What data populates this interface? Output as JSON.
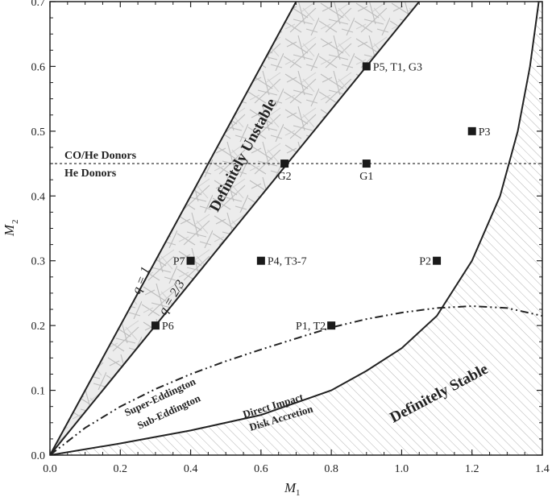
{
  "chart_data": {
    "type": "scatter",
    "xlabel": "M",
    "xlabel_sub": "1",
    "ylabel": "M",
    "ylabel_sub": "2",
    "xlim": [
      0.0,
      1.4
    ],
    "ylim": [
      0.0,
      0.7
    ],
    "xticks": [
      "0.0",
      "0.2",
      "0.4",
      "0.6",
      "0.8",
      "1.0",
      "1.2",
      "1.4"
    ],
    "yticks": [
      "0.0",
      "0.1",
      "0.2",
      "0.3",
      "0.4",
      "0.5",
      "0.6",
      "0.7"
    ],
    "xtick_values": [
      0.0,
      0.2,
      0.4,
      0.6,
      0.8,
      1.0,
      1.2,
      1.4
    ],
    "ytick_values": [
      0.0,
      0.1,
      0.2,
      0.3,
      0.4,
      0.5,
      0.6,
      0.7
    ],
    "points": [
      {
        "label": "P5, T1, G3",
        "x": 0.9,
        "y": 0.6
      },
      {
        "label": "P3",
        "x": 1.2,
        "y": 0.5
      },
      {
        "label": "G2",
        "x": 0.667,
        "y": 0.45
      },
      {
        "label": "G1",
        "x": 0.9,
        "y": 0.45
      },
      {
        "label": "P7",
        "x": 0.4,
        "y": 0.3
      },
      {
        "label": "P4, T3-7",
        "x": 0.6,
        "y": 0.3
      },
      {
        "label": "P2",
        "x": 1.1,
        "y": 0.3
      },
      {
        "label": "P6",
        "x": 0.3,
        "y": 0.2
      },
      {
        "label": "P1, T2",
        "x": 0.8,
        "y": 0.2
      }
    ],
    "lines": {
      "q1": {
        "label": "q = 1",
        "slope": 1.0
      },
      "q23": {
        "label": "q = 2/3",
        "slope": 0.6667
      },
      "donor_boundary": {
        "y": 0.45,
        "label_above": "CO/He Donors",
        "label_below": "He Donors"
      },
      "direct_impact_boundary": {
        "label_above": "Direct Impact",
        "label_below": "Disk Accretion",
        "points": [
          [
            0.0,
            0.0
          ],
          [
            0.2,
            0.018
          ],
          [
            0.4,
            0.038
          ],
          [
            0.6,
            0.062
          ],
          [
            0.8,
            0.1
          ],
          [
            0.9,
            0.13
          ],
          [
            1.0,
            0.165
          ],
          [
            1.1,
            0.215
          ],
          [
            1.2,
            0.3
          ],
          [
            1.28,
            0.4
          ],
          [
            1.33,
            0.5
          ],
          [
            1.365,
            0.6
          ],
          [
            1.39,
            0.7
          ]
        ]
      },
      "eddington_boundary": {
        "label_above": "Super-Eddington",
        "label_below": "Sub-Eddington",
        "points": [
          [
            0.0,
            0.0
          ],
          [
            0.1,
            0.042
          ],
          [
            0.2,
            0.075
          ],
          [
            0.3,
            0.102
          ],
          [
            0.4,
            0.125
          ],
          [
            0.5,
            0.145
          ],
          [
            0.6,
            0.163
          ],
          [
            0.7,
            0.18
          ],
          [
            0.8,
            0.197
          ],
          [
            0.9,
            0.21
          ],
          [
            1.0,
            0.22
          ],
          [
            1.1,
            0.227
          ],
          [
            1.2,
            0.23
          ],
          [
            1.3,
            0.227
          ],
          [
            1.4,
            0.215
          ]
        ]
      }
    },
    "regions": {
      "unstable": {
        "label": "Definitely Unstable"
      },
      "stable": {
        "label": "Definitely Stable"
      }
    },
    "colors": {
      "axis": "#222222",
      "hatch": "#b5b5b5",
      "unstable_fill": "#ebebeb",
      "marker": "#1a1a1a"
    }
  }
}
